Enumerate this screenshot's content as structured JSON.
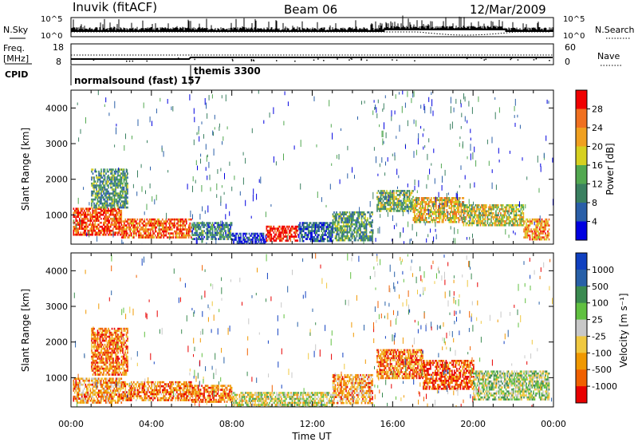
{
  "header": {
    "station": "Inuvik (fitACF)",
    "beam": "Beam 06",
    "date": "12/Mar/2009"
  },
  "nsky_panel": {
    "left_label": "N.Sky",
    "right_label": "N.Search",
    "left_ticks": [
      "10^5",
      "10^0"
    ],
    "right_ticks": [
      "10^5",
      "10^0"
    ]
  },
  "freq_panel": {
    "left_label_line1": "Freq.",
    "left_label_line2": "[MHz]",
    "right_label": "Nave",
    "left_ticks": [
      "18",
      "8"
    ],
    "right_ticks": [
      "60",
      "0"
    ]
  },
  "cpid": {
    "label": "CPID",
    "modes": [
      "normalsound (fast) 157",
      "themis 3300"
    ]
  },
  "chart_data": [
    {
      "type": "heatmap",
      "quantity": "Power",
      "ylabel": "Slant Range [km]",
      "xlabel": "Time UT",
      "x_ticks": [
        "00:00",
        "04:00",
        "08:00",
        "12:00",
        "16:00",
        "20:00",
        "00:00"
      ],
      "x_range_hours": [
        0,
        24
      ],
      "y_ticks": [
        "1000",
        "2000",
        "3000",
        "4000"
      ],
      "y_range_km": [
        180,
        4500
      ],
      "colorbar": {
        "label": "Power [dB]",
        "ticks": [
          "28",
          "24",
          "20",
          "16",
          "12",
          "8",
          "4"
        ],
        "colors": [
          "#0000e0",
          "#2a5fa8",
          "#3a8060",
          "#52a850",
          "#d6d020",
          "#f0a020",
          "#f07020",
          "#f00000"
        ]
      },
      "regions": [
        {
          "t0": 0.1,
          "t1": 2.5,
          "r0": 450,
          "r1": 1200,
          "level": 0.85
        },
        {
          "t0": 1.0,
          "t1": 2.8,
          "r0": 1200,
          "r1": 2300,
          "level": 0.35
        },
        {
          "t0": 2.5,
          "t1": 6.0,
          "r0": 350,
          "r1": 900,
          "level": 0.8
        },
        {
          "t0": 6.0,
          "t1": 8.0,
          "r0": 350,
          "r1": 800,
          "level": 0.3
        },
        {
          "t0": 8.0,
          "t1": 9.7,
          "r0": 200,
          "r1": 500,
          "level": 0.1
        },
        {
          "t0": 9.7,
          "t1": 11.3,
          "r0": 300,
          "r1": 700,
          "level": 0.95
        },
        {
          "t0": 11.3,
          "t1": 13.0,
          "r0": 250,
          "r1": 800,
          "level": 0.2
        },
        {
          "t0": 13.0,
          "t1": 15.0,
          "r0": 300,
          "r1": 1100,
          "level": 0.35
        },
        {
          "t0": 15.2,
          "t1": 17.0,
          "r0": 1100,
          "r1": 1700,
          "level": 0.45
        },
        {
          "t0": 17.0,
          "t1": 19.5,
          "r0": 800,
          "r1": 1500,
          "level": 0.65
        },
        {
          "t0": 19.5,
          "t1": 22.5,
          "r0": 700,
          "r1": 1300,
          "level": 0.55
        },
        {
          "t0": 22.5,
          "t1": 23.8,
          "r0": 300,
          "r1": 900,
          "level": 0.75
        }
      ]
    },
    {
      "type": "heatmap",
      "quantity": "Velocity",
      "ylabel": "Slant Range [km]",
      "xlabel": "Time UT",
      "x_ticks": [
        "00:00",
        "04:00",
        "08:00",
        "12:00",
        "16:00",
        "20:00",
        "00:00"
      ],
      "x_range_hours": [
        0,
        24
      ],
      "y_ticks": [
        "1000",
        "2000",
        "3000",
        "4000"
      ],
      "y_range_km": [
        180,
        4500
      ],
      "colorbar": {
        "label": "Velocity [m s⁻¹]",
        "ticks": [
          "1000",
          "500",
          "100",
          "25",
          "-25",
          "-100",
          "-500",
          "-1000"
        ],
        "colors": [
          "#e80000",
          "#f06000",
          "#f09800",
          "#f0c840",
          "#c8c8c8",
          "#60c040",
          "#3a8a50",
          "#2860a8",
          "#1040c0"
        ]
      },
      "regions": [
        {
          "t0": 0.1,
          "t1": 2.5,
          "r0": 300,
          "r1": 1000,
          "level": 0.3
        },
        {
          "t0": 1.0,
          "t1": 2.8,
          "r0": 1100,
          "r1": 2400,
          "level": 0.2
        },
        {
          "t0": 2.5,
          "t1": 6.0,
          "r0": 350,
          "r1": 900,
          "level": 0.25
        },
        {
          "t0": 6.0,
          "t1": 8.0,
          "r0": 350,
          "r1": 800,
          "level": 0.22
        },
        {
          "t0": 8.0,
          "t1": 13.0,
          "r0": 200,
          "r1": 600,
          "level": 0.5
        },
        {
          "t0": 13.0,
          "t1": 15.0,
          "r0": 300,
          "r1": 1100,
          "level": 0.3
        },
        {
          "t0": 15.2,
          "t1": 17.5,
          "r0": 1000,
          "r1": 1800,
          "level": 0.22
        },
        {
          "t0": 17.5,
          "t1": 20.0,
          "r0": 700,
          "r1": 1500,
          "level": 0.15
        },
        {
          "t0": 20.0,
          "t1": 23.8,
          "r0": 400,
          "r1": 1200,
          "level": 0.55
        }
      ]
    }
  ]
}
